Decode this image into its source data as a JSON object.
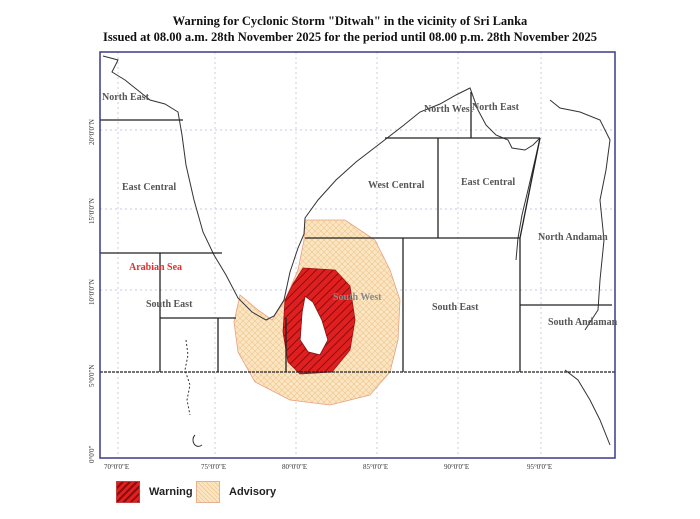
{
  "title": "Warning for Cyclonic Storm \"Ditwah\" in the vicinity of Sri Lanka",
  "subtitle": "Issued at 08.00 a.m. 28th November 2025 for the period until 08.00 p.m. 28th November 2025",
  "longitude_ticks": [
    "70°0'0\"E",
    "75°0'0\"E",
    "80°0'0\"E",
    "85°0'0\"E",
    "90°0'0\"E",
    "95°0'0\"E"
  ],
  "latitude_ticks": [
    "20°0'0\"N",
    "15°0'0\"N",
    "10°0'0\"N",
    "5°0'0\"N",
    "0°0'0\""
  ],
  "regions": {
    "arabian_north_east": "North East",
    "arabian_east_central": "East Central",
    "arabian_sea": "Arabian Sea",
    "arabian_south_east": "South East",
    "bay_north_west": "North West",
    "bay_north_east": "North East",
    "bay_west_central": "West Central",
    "bay_east_central": "East Central",
    "bay_south_west": "South West",
    "bay_south_east": "South East",
    "north_andaman": "North Andaman",
    "south_andaman": "South Andaman"
  },
  "legend": [
    {
      "label": "Warning",
      "color": "#e02020"
    },
    {
      "label": "Advisory",
      "color": "#f7dcb0"
    }
  ],
  "colors": {
    "frame": "#3a3a8a",
    "arabian_sea_label": "#e03030"
  }
}
